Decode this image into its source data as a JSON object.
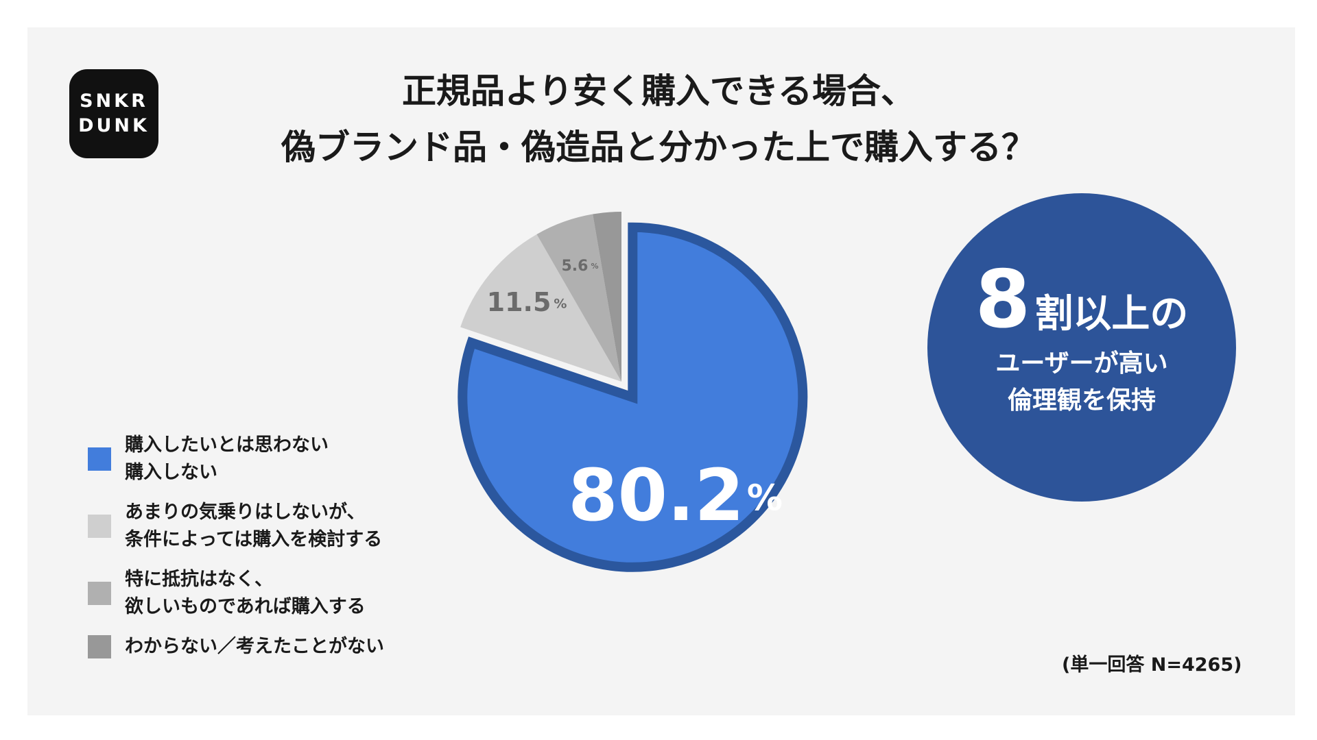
{
  "brand": {
    "line1": "SNKR",
    "line2": "DUNK"
  },
  "title": {
    "line1": "正規品より安く購入できる場合、",
    "line2": "偽ブランド品・偽造品と分かった上で購入する？"
  },
  "chart_data": {
    "type": "pie",
    "slices": [
      {
        "label": "購入したいとは思わない\n購入しない",
        "value": 80.2,
        "value_label": "80.2",
        "color": "#427ddc",
        "border": "#2b579e",
        "exploded": true
      },
      {
        "label": "あまりの気乗りはしないが、\n条件によっては購入を検討する",
        "value": 11.5,
        "value_label": "11.5",
        "color": "#cfcfcf"
      },
      {
        "label": "特に抵抗はなく、\n欲しいものであれば購入する",
        "value": 5.6,
        "value_label": "5.6",
        "color": "#b0b0b0"
      },
      {
        "label": "わからない／考えたことがない",
        "value": 2.7,
        "value_label": "",
        "color": "#989898"
      }
    ],
    "unit": "%"
  },
  "callout": {
    "big": "8",
    "rest": "割以上の",
    "sub": "ユーザーが高い\n倫理観を保持"
  },
  "note": "(単一回答 N=4265)"
}
